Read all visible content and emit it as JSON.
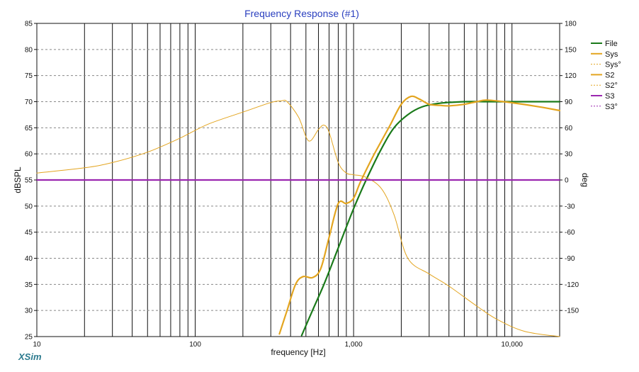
{
  "chart_data": {
    "type": "line",
    "title": "Frequency Response (#1)",
    "xlabel": "frequency [Hz]",
    "ylabel": "dBSPL",
    "y2label": "deg",
    "x_scale": "log",
    "xlim": [
      10,
      20000
    ],
    "ylim": [
      25,
      85
    ],
    "y2lim": [
      -180,
      180
    ],
    "x_tick_labels": [
      "10",
      "100",
      "1,000",
      "10,000"
    ],
    "y_ticks": [
      25,
      30,
      35,
      40,
      45,
      50,
      55,
      60,
      65,
      70,
      75,
      80,
      85
    ],
    "y2_ticks": [
      -150,
      -120,
      -90,
      -60,
      -30,
      0,
      30,
      60,
      90,
      120,
      150,
      180
    ],
    "grid": true,
    "legend_position": "right",
    "series": [
      {
        "name": "File",
        "color": "#1a7a1a",
        "axis": "left",
        "style": "solid",
        "x": [
          470,
          550,
          650,
          800,
          1000,
          1200,
          1500,
          1800,
          2200,
          2700,
          3500,
          5000,
          7000,
          10000,
          15000,
          20000
        ],
        "y": [
          25.2,
          30,
          35,
          42,
          49.5,
          55,
          61,
          65,
          67.5,
          69,
          69.7,
          70,
          70,
          70,
          70,
          70
        ]
      },
      {
        "name": "Sys",
        "color": "#e3a520",
        "axis": "left",
        "style": "solid",
        "x": [
          340,
          380,
          430,
          480,
          550,
          620,
          700,
          800,
          900,
          1000,
          1100,
          1300,
          1500,
          1700,
          2000,
          2300,
          2600,
          3000,
          3500,
          4000,
          5000,
          6000,
          7000,
          10000,
          15000,
          20000
        ],
        "y": [
          25.5,
          30,
          35,
          36.5,
          36.3,
          38,
          44,
          50.5,
          50.5,
          51.5,
          54.5,
          59,
          62.5,
          65.5,
          69.5,
          71,
          70.5,
          69.5,
          69.3,
          69.2,
          69.5,
          70,
          70.3,
          69.8,
          69,
          68.3
        ]
      },
      {
        "name": "Sys°",
        "color": "#e3a520",
        "axis": "right",
        "style": "solid-thin",
        "x": [
          10,
          20,
          30,
          50,
          80,
          120,
          200,
          300,
          350,
          380,
          450,
          520,
          600,
          650,
          700,
          800,
          900,
          1000,
          1200,
          1500,
          1800,
          2200,
          3000,
          4000,
          6000,
          8000,
          12000,
          20000
        ],
        "y": [
          8,
          14,
          20,
          32,
          48,
          64,
          78,
          89,
          91,
          90,
          72,
          45,
          58,
          63,
          55,
          20,
          8,
          6,
          3,
          -10,
          -40,
          -90,
          -108,
          -122,
          -145,
          -160,
          -174,
          -180
        ]
      },
      {
        "name": "S3",
        "color": "#9b27b0",
        "axis": "left",
        "style": "solid",
        "x": [
          10,
          20000
        ],
        "y": [
          55,
          55
        ]
      }
    ],
    "legend": [
      {
        "name": "File",
        "color": "#1a7a1a",
        "style": "solid",
        "weight": 2
      },
      {
        "name": "Sys",
        "color": "#e3a520",
        "style": "solid",
        "weight": 2
      },
      {
        "name": "Sys°",
        "color": "#e3a520",
        "style": "dashed",
        "weight": 1
      },
      {
        "name": "S2",
        "color": "#e3a520",
        "style": "solid",
        "weight": 2
      },
      {
        "name": "S2°",
        "color": "#e3a520",
        "style": "dashed",
        "weight": 1
      },
      {
        "name": "S3",
        "color": "#9b27b0",
        "style": "solid",
        "weight": 2
      },
      {
        "name": "S3°",
        "color": "#9b27b0",
        "style": "dashed",
        "weight": 1
      }
    ]
  },
  "brand": {
    "label": "XSim"
  }
}
